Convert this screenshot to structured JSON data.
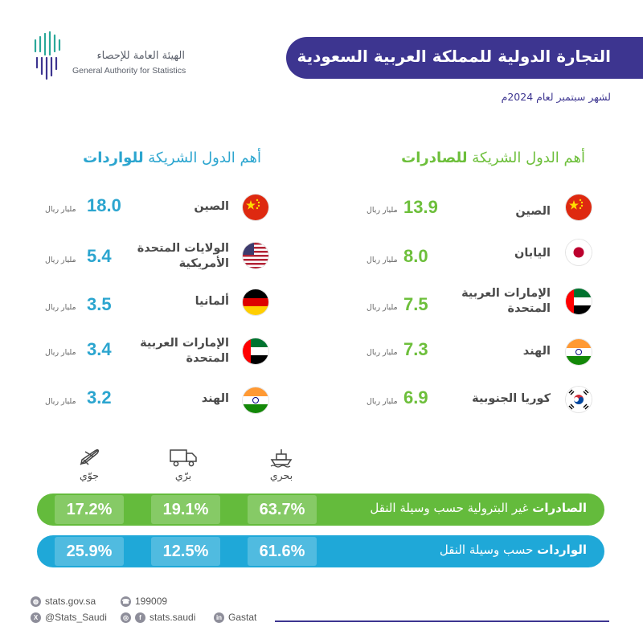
{
  "header": {
    "org_ar": "الهيئة العامة للإحصاء",
    "org_en": "General Authority for Statistics",
    "title": "التجارة الدولية للمملكة العربية السعودية",
    "subtitle": "لشهر سبتمبر لعام 2024م"
  },
  "exports": {
    "heading_prefix": "أهم الدول الشريكة ",
    "heading_strong": "للصادرات",
    "unit": "مليار ريال",
    "partners": [
      {
        "country": "الصين",
        "value": "13.9",
        "flag": "china-flag"
      },
      {
        "country": "اليابان",
        "value": "8.0",
        "flag": "japan-flag"
      },
      {
        "country": "الإمارات العربية المتحدة",
        "value": "7.5",
        "flag": "uae-flag"
      },
      {
        "country": "الهند",
        "value": "7.3",
        "flag": "india-flag"
      },
      {
        "country": "كوريا الجنوبية",
        "value": "6.9",
        "flag": "south-korea-flag"
      }
    ]
  },
  "imports": {
    "heading_prefix": "أهم الدول الشريكة ",
    "heading_strong": "للواردات",
    "unit": "مليار ريال",
    "partners": [
      {
        "country": "الصين",
        "value": "18.0",
        "flag": "china-flag"
      },
      {
        "country": "الولايات المتحدة الأمريكية",
        "value": "5.4",
        "flag": "usa-flag"
      },
      {
        "country": "ألمانيا",
        "value": "3.5",
        "flag": "germany-flag"
      },
      {
        "country": "الإمارات العربية المتحدة",
        "value": "3.4",
        "flag": "uae-flag"
      },
      {
        "country": "الهند",
        "value": "3.2",
        "flag": "india-flag"
      }
    ]
  },
  "transport": {
    "modes": [
      {
        "label": "جوّي",
        "icon": "airplane-icon"
      },
      {
        "label": "برّي",
        "icon": "truck-icon"
      },
      {
        "label": "بحري",
        "icon": "ship-icon"
      }
    ],
    "exports_bar": {
      "label_strong": "الصادرات",
      "label_rest": " غير البترولية حسب وسيلة النقل",
      "air": "17.2%",
      "land": "19.1%",
      "sea": "63.7%"
    },
    "imports_bar": {
      "label_strong": "الواردات",
      "label_rest": " حسب وسيلة النقل",
      "air": "25.9%",
      "land": "12.5%",
      "sea": "61.6%"
    }
  },
  "footer": {
    "website": "stats.gov.sa",
    "phone": "199009",
    "twitter": "@Stats_Saudi",
    "social": "stats.saudi",
    "linkedin": "Gastat"
  },
  "colors": {
    "brand_purple": "#3d3590",
    "exports_green": "#64bb3c",
    "imports_blue": "#1fa8d8"
  }
}
